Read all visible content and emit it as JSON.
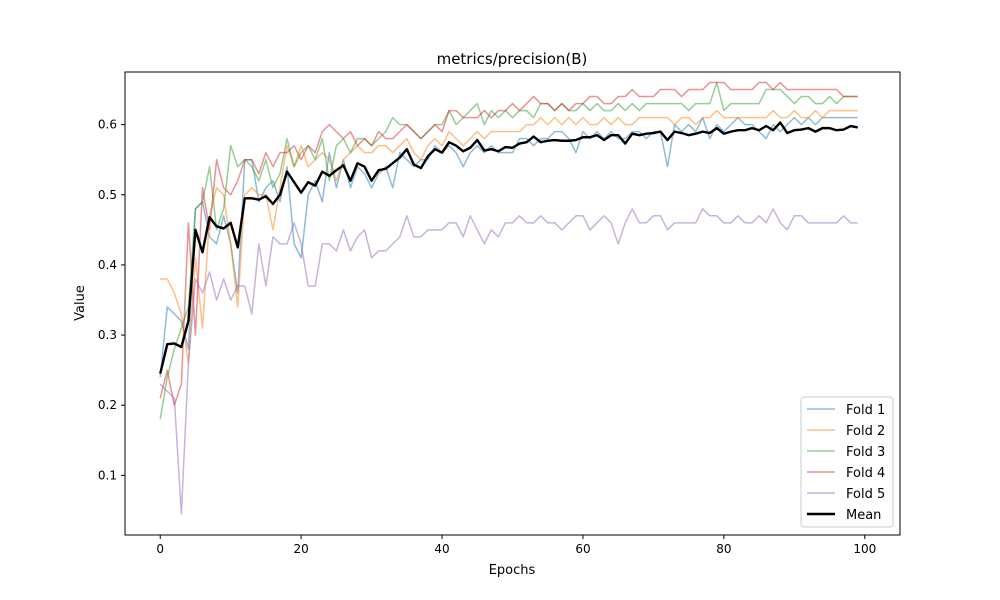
{
  "chart_data": {
    "type": "line",
    "title": "metrics/precision(B)",
    "xlabel": "Epochs",
    "ylabel": "Value",
    "xlim": [
      -5,
      105
    ],
    "ylim": [
      0.015,
      0.675
    ],
    "xticks": [
      0,
      20,
      40,
      60,
      80,
      100
    ],
    "yticks": [
      0.1,
      0.2,
      0.3,
      0.4,
      0.5,
      0.6
    ],
    "legend_position": "lower-right",
    "grid": false,
    "series": [
      {
        "name": "Fold 1",
        "color": "#1f77b4",
        "opacity": 0.5,
        "width": 1.5,
        "values": [
          0.24,
          0.34,
          0.33,
          0.32,
          0.28,
          0.48,
          0.49,
          0.44,
          0.43,
          0.47,
          0.43,
          0.36,
          0.55,
          0.55,
          0.49,
          0.51,
          0.52,
          0.49,
          0.54,
          0.43,
          0.41,
          0.5,
          0.52,
          0.49,
          0.56,
          0.51,
          0.55,
          0.51,
          0.54,
          0.53,
          0.51,
          0.53,
          0.54,
          0.51,
          0.56,
          0.55,
          0.54,
          0.55,
          0.55,
          0.57,
          0.56,
          0.57,
          0.56,
          0.54,
          0.56,
          0.57,
          0.56,
          0.57,
          0.56,
          0.56,
          0.56,
          0.58,
          0.58,
          0.57,
          0.58,
          0.58,
          0.59,
          0.59,
          0.58,
          0.56,
          0.59,
          0.58,
          0.59,
          0.58,
          0.59,
          0.58,
          0.58,
          0.59,
          0.59,
          0.58,
          0.59,
          0.59,
          0.54,
          0.6,
          0.59,
          0.6,
          0.59,
          0.61,
          0.58,
          0.6,
          0.59,
          0.6,
          0.61,
          0.6,
          0.6,
          0.59,
          0.58,
          0.6,
          0.59,
          0.6,
          0.61,
          0.6,
          0.61,
          0.6,
          0.61,
          0.61,
          0.61,
          0.61,
          0.61,
          0.61
        ]
      },
      {
        "name": "Fold 2",
        "color": "#ff7f0e",
        "opacity": 0.5,
        "width": 1.5,
        "values": [
          0.38,
          0.38,
          0.36,
          0.33,
          0.26,
          0.41,
          0.31,
          0.47,
          0.51,
          0.5,
          0.43,
          0.34,
          0.5,
          0.51,
          0.5,
          0.5,
          0.45,
          0.51,
          0.57,
          0.54,
          0.57,
          0.54,
          0.55,
          0.56,
          0.55,
          0.52,
          0.55,
          0.56,
          0.57,
          0.56,
          0.56,
          0.57,
          0.57,
          0.56,
          0.57,
          0.58,
          0.56,
          0.55,
          0.57,
          0.58,
          0.57,
          0.59,
          0.58,
          0.57,
          0.58,
          0.59,
          0.58,
          0.59,
          0.59,
          0.59,
          0.59,
          0.59,
          0.6,
          0.6,
          0.61,
          0.6,
          0.61,
          0.6,
          0.61,
          0.6,
          0.61,
          0.6,
          0.6,
          0.61,
          0.6,
          0.61,
          0.6,
          0.6,
          0.61,
          0.61,
          0.61,
          0.61,
          0.61,
          0.6,
          0.61,
          0.61,
          0.6,
          0.61,
          0.61,
          0.62,
          0.61,
          0.61,
          0.61,
          0.61,
          0.61,
          0.61,
          0.61,
          0.62,
          0.61,
          0.61,
          0.62,
          0.61,
          0.61,
          0.62,
          0.61,
          0.62,
          0.62,
          0.62,
          0.62,
          0.62
        ]
      },
      {
        "name": "Fold 3",
        "color": "#2ca02c",
        "opacity": 0.5,
        "width": 1.5,
        "values": [
          0.18,
          0.24,
          0.28,
          0.31,
          0.34,
          0.48,
          0.49,
          0.54,
          0.45,
          0.48,
          0.57,
          0.54,
          0.55,
          0.54,
          0.52,
          0.55,
          0.51,
          0.53,
          0.58,
          0.54,
          0.56,
          0.57,
          0.55,
          0.58,
          0.52,
          0.57,
          0.58,
          0.56,
          0.58,
          0.58,
          0.57,
          0.58,
          0.59,
          0.61,
          0.6,
          0.6,
          0.59,
          0.58,
          0.59,
          0.6,
          0.6,
          0.62,
          0.6,
          0.61,
          0.62,
          0.63,
          0.6,
          0.62,
          0.61,
          0.62,
          0.61,
          0.62,
          0.62,
          0.61,
          0.63,
          0.63,
          0.62,
          0.63,
          0.62,
          0.62,
          0.63,
          0.62,
          0.63,
          0.62,
          0.62,
          0.63,
          0.62,
          0.63,
          0.62,
          0.63,
          0.63,
          0.63,
          0.63,
          0.63,
          0.63,
          0.62,
          0.63,
          0.63,
          0.63,
          0.66,
          0.62,
          0.63,
          0.63,
          0.63,
          0.63,
          0.63,
          0.65,
          0.65,
          0.65,
          0.64,
          0.63,
          0.64,
          0.64,
          0.63,
          0.63,
          0.64,
          0.63,
          0.64,
          0.64,
          0.64
        ]
      },
      {
        "name": "Fold 4",
        "color": "#d62728",
        "opacity": 0.5,
        "width": 1.5,
        "values": [
          0.21,
          0.25,
          0.2,
          0.23,
          0.46,
          0.3,
          0.51,
          0.45,
          0.55,
          0.51,
          0.5,
          0.52,
          0.55,
          0.55,
          0.53,
          0.56,
          0.54,
          0.56,
          0.56,
          0.57,
          0.55,
          0.57,
          0.56,
          0.59,
          0.6,
          0.59,
          0.58,
          0.59,
          0.57,
          0.58,
          0.57,
          0.59,
          0.58,
          0.58,
          0.59,
          0.6,
          0.59,
          0.58,
          0.59,
          0.6,
          0.59,
          0.62,
          0.62,
          0.61,
          0.61,
          0.61,
          0.62,
          0.61,
          0.62,
          0.62,
          0.63,
          0.62,
          0.63,
          0.64,
          0.63,
          0.63,
          0.62,
          0.63,
          0.62,
          0.63,
          0.63,
          0.64,
          0.64,
          0.63,
          0.63,
          0.64,
          0.64,
          0.65,
          0.64,
          0.64,
          0.64,
          0.65,
          0.65,
          0.65,
          0.64,
          0.65,
          0.65,
          0.65,
          0.66,
          0.66,
          0.66,
          0.65,
          0.65,
          0.65,
          0.65,
          0.66,
          0.66,
          0.65,
          0.66,
          0.65,
          0.65,
          0.65,
          0.65,
          0.65,
          0.65,
          0.65,
          0.65,
          0.64,
          0.64,
          0.64
        ]
      },
      {
        "name": "Fold 5",
        "color": "#9467bd",
        "opacity": 0.5,
        "width": 1.5,
        "values": [
          0.23,
          0.22,
          0.21,
          0.045,
          0.26,
          0.38,
          0.36,
          0.39,
          0.35,
          0.38,
          0.35,
          0.37,
          0.37,
          0.33,
          0.43,
          0.37,
          0.44,
          0.43,
          0.43,
          0.46,
          0.43,
          0.37,
          0.37,
          0.43,
          0.43,
          0.42,
          0.45,
          0.42,
          0.44,
          0.45,
          0.41,
          0.42,
          0.42,
          0.43,
          0.44,
          0.47,
          0.44,
          0.44,
          0.45,
          0.45,
          0.45,
          0.46,
          0.46,
          0.44,
          0.47,
          0.45,
          0.43,
          0.45,
          0.44,
          0.46,
          0.46,
          0.47,
          0.46,
          0.46,
          0.47,
          0.46,
          0.46,
          0.45,
          0.46,
          0.47,
          0.47,
          0.45,
          0.46,
          0.47,
          0.46,
          0.43,
          0.46,
          0.48,
          0.46,
          0.46,
          0.47,
          0.47,
          0.45,
          0.46,
          0.46,
          0.46,
          0.46,
          0.48,
          0.47,
          0.47,
          0.46,
          0.46,
          0.47,
          0.46,
          0.46,
          0.47,
          0.46,
          0.48,
          0.46,
          0.45,
          0.47,
          0.47,
          0.46,
          0.46,
          0.46,
          0.46,
          0.46,
          0.47,
          0.46,
          0.46
        ]
      },
      {
        "name": "Mean",
        "color": "#000000",
        "opacity": 1.0,
        "width": 2.4,
        "values": [
          0.245,
          0.287,
          0.288,
          0.283,
          0.32,
          0.45,
          0.418,
          0.468,
          0.455,
          0.452,
          0.46,
          0.425,
          0.495,
          0.495,
          0.493,
          0.498,
          0.487,
          0.5,
          0.533,
          0.518,
          0.503,
          0.518,
          0.513,
          0.533,
          0.527,
          0.535,
          0.542,
          0.52,
          0.545,
          0.54,
          0.52,
          0.535,
          0.537,
          0.545,
          0.553,
          0.565,
          0.543,
          0.538,
          0.555,
          0.565,
          0.56,
          0.575,
          0.57,
          0.562,
          0.567,
          0.578,
          0.563,
          0.565,
          0.562,
          0.568,
          0.567,
          0.573,
          0.575,
          0.583,
          0.575,
          0.577,
          0.578,
          0.577,
          0.577,
          0.578,
          0.582,
          0.582,
          0.585,
          0.578,
          0.585,
          0.585,
          0.573,
          0.587,
          0.585,
          0.587,
          0.588,
          0.59,
          0.578,
          0.59,
          0.588,
          0.585,
          0.587,
          0.59,
          0.588,
          0.595,
          0.587,
          0.59,
          0.592,
          0.592,
          0.595,
          0.592,
          0.598,
          0.592,
          0.603,
          0.588,
          0.592,
          0.593,
          0.595,
          0.59,
          0.595,
          0.595,
          0.592,
          0.593,
          0.598,
          0.596
        ]
      }
    ]
  }
}
